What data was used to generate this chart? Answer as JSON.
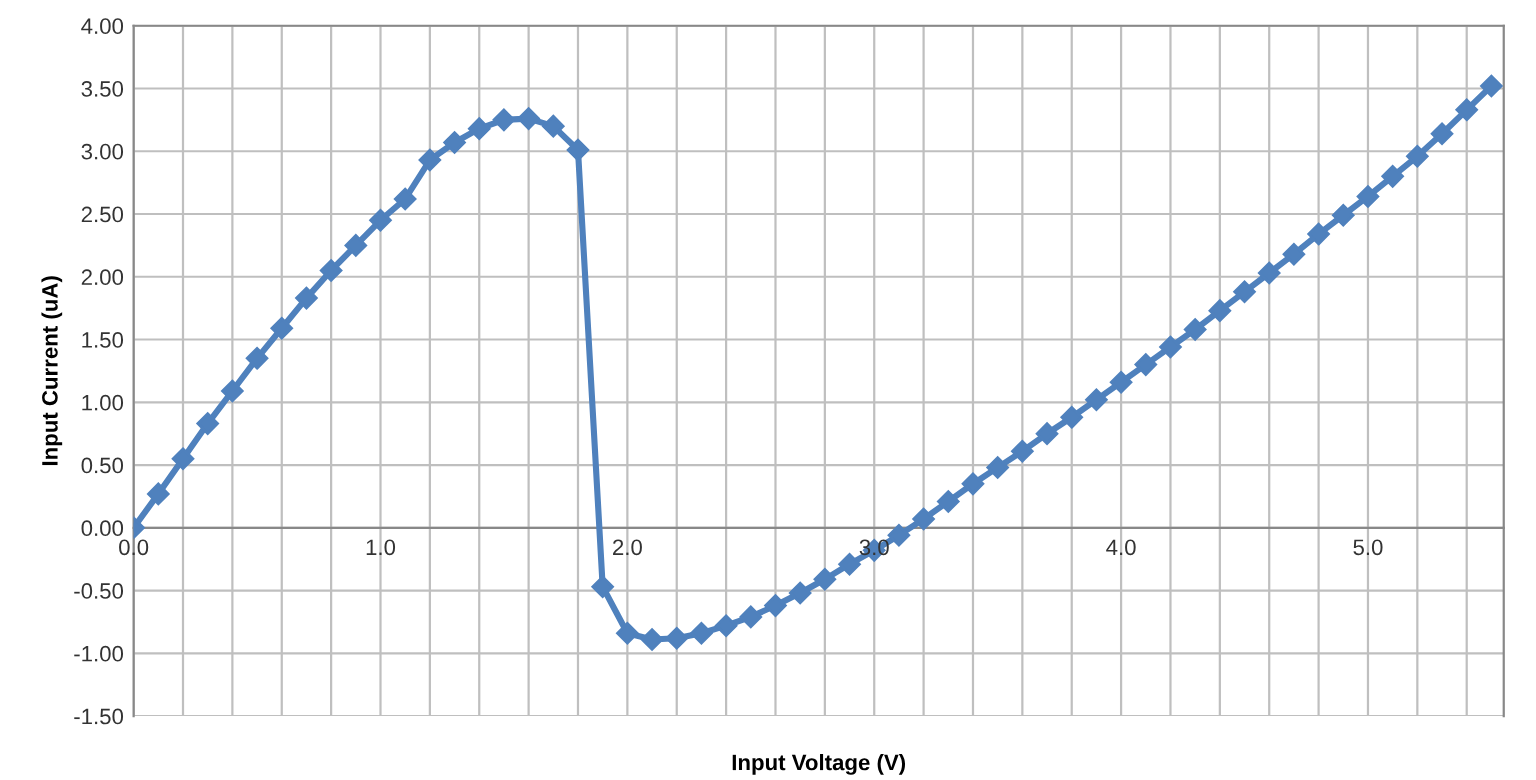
{
  "chart_data": {
    "type": "line",
    "xlabel": "Input Voltage (V)",
    "ylabel": "Input Current (uA)",
    "x": [
      0.0,
      0.1,
      0.2,
      0.3,
      0.4,
      0.5,
      0.6,
      0.7,
      0.8,
      0.9,
      1.0,
      1.1,
      1.2,
      1.3,
      1.4,
      1.5,
      1.6,
      1.7,
      1.8,
      1.9,
      2.0,
      2.1,
      2.2,
      2.3,
      2.4,
      2.5,
      2.6,
      2.7,
      2.8,
      2.9,
      3.0,
      3.1,
      3.2,
      3.3,
      3.4,
      3.5,
      3.6,
      3.7,
      3.8,
      3.9,
      4.0,
      4.1,
      4.2,
      4.3,
      4.4,
      4.5,
      4.6,
      4.7,
      4.8,
      4.9,
      5.0,
      5.1,
      5.2,
      5.3,
      5.4,
      5.5
    ],
    "series": [
      {
        "color": "#4f81bd",
        "values": [
          0.0,
          0.27,
          0.55,
          0.83,
          1.09,
          1.35,
          1.59,
          1.83,
          2.05,
          2.25,
          2.45,
          2.62,
          2.93,
          3.07,
          3.18,
          3.25,
          3.26,
          3.2,
          3.01,
          -0.47,
          -0.84,
          -0.89,
          -0.88,
          -0.84,
          -0.78,
          -0.71,
          -0.62,
          -0.52,
          -0.41,
          -0.29,
          -0.18,
          -0.06,
          0.07,
          0.21,
          0.35,
          0.48,
          0.61,
          0.75,
          0.88,
          1.02,
          1.16,
          1.3,
          1.44,
          1.58,
          1.73,
          1.88,
          2.03,
          2.18,
          2.34,
          2.49,
          2.64,
          2.8,
          2.96,
          3.14,
          3.33,
          3.52
        ]
      }
    ],
    "xlim": [
      0,
      5.55
    ],
    "xticks": [
      {
        "value": 0,
        "label": "0.0"
      },
      {
        "value": 0.2,
        "label": null
      },
      {
        "value": 0.4,
        "label": null
      },
      {
        "value": 0.6,
        "label": null
      },
      {
        "value": 0.8,
        "label": null
      },
      {
        "value": 1,
        "label": "1.0"
      },
      {
        "value": 1.2,
        "label": null
      },
      {
        "value": 1.4,
        "label": null
      },
      {
        "value": 1.6,
        "label": null
      },
      {
        "value": 1.8,
        "label": null
      },
      {
        "value": 2,
        "label": "2.0"
      },
      {
        "value": 2.2,
        "label": null
      },
      {
        "value": 2.4,
        "label": null
      },
      {
        "value": 2.6,
        "label": null
      },
      {
        "value": 2.8,
        "label": null
      },
      {
        "value": 3,
        "label": "3.0"
      },
      {
        "value": 3.2,
        "label": null
      },
      {
        "value": 3.4,
        "label": null
      },
      {
        "value": 3.6,
        "label": null
      },
      {
        "value": 3.8,
        "label": null
      },
      {
        "value": 4,
        "label": "4.0"
      },
      {
        "value": 4.2,
        "label": null
      },
      {
        "value": 4.4,
        "label": null
      },
      {
        "value": 4.6,
        "label": null
      },
      {
        "value": 4.8,
        "label": null
      },
      {
        "value": 5,
        "label": "5.0"
      },
      {
        "value": 5.2,
        "label": null
      },
      {
        "value": 5.4,
        "label": null
      }
    ],
    "ylim": [
      -1.5,
      4
    ],
    "yticks": [
      {
        "value": -1.5,
        "label": "-1.50"
      },
      {
        "value": -1,
        "label": "-1.00"
      },
      {
        "value": -0.5,
        "label": "-0.50"
      },
      {
        "value": 0,
        "label": "0.00"
      },
      {
        "value": 0.5,
        "label": "0.50"
      },
      {
        "value": 1,
        "label": "1.00"
      },
      {
        "value": 1.5,
        "label": "1.50"
      },
      {
        "value": 2,
        "label": "2.00"
      },
      {
        "value": 2.5,
        "label": "2.50"
      },
      {
        "value": 3,
        "label": "3.00"
      },
      {
        "value": 3.5,
        "label": "3.50"
      },
      {
        "value": 4,
        "label": "4.00"
      }
    ],
    "grid": true,
    "marker": "diamond",
    "line_style": "solid"
  }
}
